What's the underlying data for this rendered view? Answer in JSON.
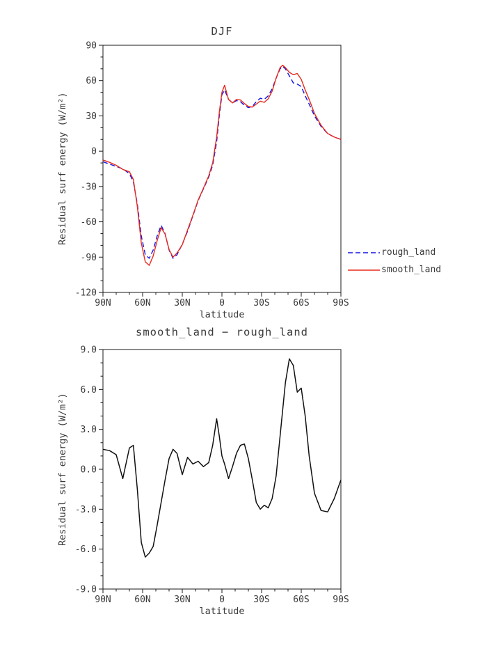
{
  "page": {
    "background": "#ffffff",
    "text_color": "#3a3a3a"
  },
  "chart_data": [
    {
      "id": "djf",
      "type": "line",
      "title": "DJF",
      "xlabel": "latitude",
      "ylabel": "Residual surf energy (W/m²)",
      "xlim": [
        90,
        -90
      ],
      "ylim": [
        -120,
        90
      ],
      "grid": false,
      "legend_position": "right-outside",
      "xticks": {
        "values": [
          90,
          60,
          30,
          0,
          -30,
          -60,
          -90
        ],
        "labels": [
          "90N",
          "60N",
          "30N",
          "0",
          "30S",
          "60S",
          "90S"
        ]
      },
      "yticks": {
        "values": [
          90,
          60,
          30,
          0,
          -30,
          -60,
          -90,
          -120
        ],
        "labels": [
          "90",
          "60",
          "30",
          "0",
          "-30",
          "-60",
          "-90",
          "-120"
        ]
      },
      "xminor_step": 10,
      "yminor_step": 10,
      "x": [
        90,
        85,
        80,
        75,
        70,
        67,
        64,
        61,
        58,
        55,
        52,
        49,
        46,
        43,
        40,
        37,
        34,
        30,
        26,
        22,
        18,
        14,
        10,
        7,
        4,
        2,
        0,
        -2,
        -5,
        -8,
        -11,
        -14,
        -17,
        -20,
        -23,
        -26,
        -29,
        -32,
        -35,
        -38,
        -41,
        -44,
        -46,
        -48,
        -51,
        -54,
        -57,
        -60,
        -63,
        -66,
        -70,
        -75,
        -80,
        -85,
        -90
      ],
      "series": [
        {
          "name": "rough_land",
          "color": "#1414e6",
          "dash": "7 4",
          "width": 1.4,
          "values": [
            -9,
            -11,
            -13,
            -15,
            -19,
            -26,
            -45,
            -72,
            -88,
            -91,
            -84,
            -72,
            -63,
            -70,
            -84,
            -91,
            -88,
            -79,
            -68,
            -55,
            -42,
            -32,
            -22,
            -12,
            8,
            30,
            48,
            52,
            44,
            41,
            43,
            42,
            39,
            37,
            38,
            42,
            45,
            44,
            47,
            53,
            62,
            70,
            72,
            70,
            64,
            58,
            57,
            55,
            47,
            40,
            30,
            21,
            15,
            12,
            10
          ]
        },
        {
          "name": "smooth_land",
          "color": "#e8291c",
          "dash": null,
          "width": 1.4,
          "values": [
            -7.5,
            -9.5,
            -12,
            -15.5,
            -17.5,
            -24,
            -47,
            -78,
            -94,
            -97,
            -89,
            -76,
            -65,
            -70.5,
            -83.5,
            -90,
            -86.5,
            -79.5,
            -67,
            -54.5,
            -41.5,
            -31.5,
            -21,
            -10,
            12,
            33,
            50,
            56,
            44,
            41,
            44,
            43.5,
            40.5,
            38,
            37.5,
            40,
            42.5,
            41.5,
            44.5,
            51,
            62,
            71,
            73,
            71,
            67,
            65,
            66,
            61,
            52,
            44,
            32,
            22,
            15,
            12,
            10
          ]
        }
      ]
    },
    {
      "id": "diff",
      "type": "line",
      "title": "smooth_land − rough_land",
      "xlabel": "latitude",
      "ylabel": "Residual surf energy (W/m²)",
      "xlim": [
        90,
        -90
      ],
      "ylim": [
        -9,
        9
      ],
      "grid": false,
      "xticks": {
        "values": [
          90,
          60,
          30,
          0,
          -30,
          -60,
          -90
        ],
        "labels": [
          "90N",
          "60N",
          "30N",
          "0",
          "30S",
          "60S",
          "90S"
        ]
      },
      "yticks": {
        "values": [
          9,
          6,
          3,
          0,
          -3,
          -6,
          -9
        ],
        "labels": [
          "9.0",
          "6.0",
          "3.0",
          "0.0",
          "-3.0",
          "-6.0",
          "-9.0"
        ]
      },
      "xminor_step": 10,
      "yminor_step": 1,
      "x": [
        90,
        85,
        80,
        75,
        70,
        67,
        64,
        61,
        58,
        55,
        52,
        49,
        46,
        43,
        40,
        37,
        34,
        30,
        26,
        22,
        18,
        14,
        10,
        7,
        4,
        2,
        0,
        -2,
        -5,
        -8,
        -11,
        -14,
        -17,
        -20,
        -23,
        -26,
        -29,
        -32,
        -35,
        -38,
        -41,
        -44,
        -46,
        -48,
        -51,
        -54,
        -57,
        -60,
        -63,
        -66,
        -70,
        -75,
        -80,
        -85,
        -90
      ],
      "series": [
        {
          "name": "smooth_land - rough_land",
          "color": "#111111",
          "dash": null,
          "width": 1.5,
          "values": [
            1.5,
            1.4,
            1.1,
            -0.7,
            1.6,
            1.8,
            -1.5,
            -5.5,
            -6.6,
            -6.3,
            -5.8,
            -4.2,
            -2.5,
            -0.8,
            0.8,
            1.5,
            1.2,
            -0.4,
            0.9,
            0.4,
            0.6,
            0.2,
            0.5,
            1.8,
            3.8,
            2.5,
            1.0,
            0.4,
            -0.7,
            0.2,
            1.2,
            1.8,
            1.9,
            0.8,
            -0.8,
            -2.5,
            -3.0,
            -2.7,
            -2.9,
            -2.2,
            -0.5,
            2.5,
            4.5,
            6.5,
            8.3,
            7.8,
            5.8,
            6.1,
            4.0,
            1.0,
            -1.8,
            -3.1,
            -3.2,
            -2.2,
            -0.8
          ]
        }
      ]
    }
  ]
}
